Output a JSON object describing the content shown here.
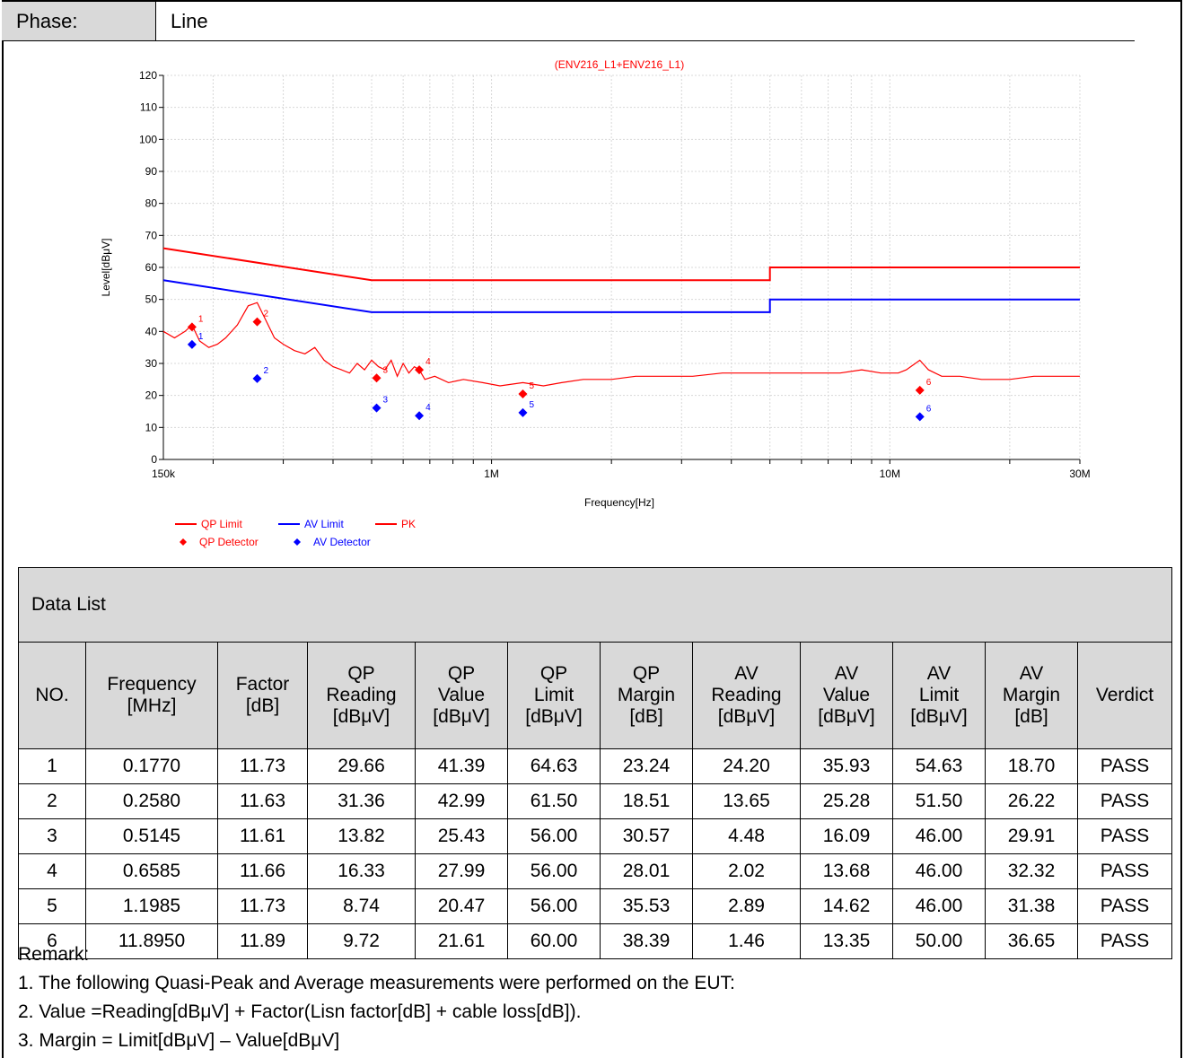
{
  "phase": {
    "label": "Phase:",
    "value": "Line"
  },
  "chart_data": {
    "type": "line",
    "title": "(ENV216_L1+ENV216_L1)",
    "xlabel": "Frequency[Hz]",
    "ylabel": "Level[dBμV]",
    "xscale": "log",
    "xlim": [
      150000,
      30000000
    ],
    "ylim": [
      0,
      120
    ],
    "yticks": [
      0,
      10,
      20,
      30,
      40,
      50,
      60,
      70,
      80,
      90,
      100,
      110,
      120
    ],
    "xtick_labels": [
      {
        "value": 150000,
        "label": "150k"
      },
      {
        "value": 1000000,
        "label": "1M"
      },
      {
        "value": 10000000,
        "label": "10M"
      },
      {
        "value": 30000000,
        "label": "30M"
      }
    ],
    "grid": true,
    "legend_position": "bottom-left",
    "colors": {
      "red": "#ff0000",
      "blue": "#0000ff"
    },
    "series": [
      {
        "name": "QP Limit",
        "kind": "line",
        "color": "#ff0000",
        "x": [
          150000,
          500000,
          500000,
          5000000,
          5000000,
          30000000
        ],
        "y": [
          66,
          56,
          56,
          56,
          60,
          60
        ]
      },
      {
        "name": "AV Limit",
        "kind": "line",
        "color": "#0000ff",
        "x": [
          150000,
          500000,
          500000,
          5000000,
          5000000,
          30000000
        ],
        "y": [
          56,
          46,
          46,
          46,
          50,
          50
        ]
      },
      {
        "name": "PK",
        "kind": "line",
        "color": "#ff0000",
        "x": [
          150000,
          160000,
          170000,
          177000,
          185000,
          195000,
          205000,
          215000,
          230000,
          245000,
          258000,
          270000,
          285000,
          300000,
          320000,
          340000,
          360000,
          380000,
          400000,
          420000,
          440000,
          460000,
          480000,
          500000,
          520000,
          540000,
          560000,
          580000,
          600000,
          620000,
          640000,
          658500,
          680000,
          720000,
          780000,
          850000,
          950000,
          1050000,
          1198500,
          1350000,
          1500000,
          1700000,
          2000000,
          2300000,
          2700000,
          3200000,
          3800000,
          4500000,
          5500000,
          6500000,
          7500000,
          8500000,
          9500000,
          10500000,
          11000000,
          11895000,
          12500000,
          13500000,
          15000000,
          17000000,
          20000000,
          23000000,
          26000000,
          30000000
        ],
        "y": [
          40,
          38,
          40,
          42,
          37,
          35,
          36,
          38,
          42,
          48,
          49,
          44,
          38,
          36,
          34,
          33,
          35,
          31,
          29,
          28,
          27,
          30,
          28,
          31,
          29,
          28,
          31,
          26,
          30,
          27,
          29,
          28,
          25,
          26,
          24,
          25,
          24,
          23,
          24,
          23,
          24,
          25,
          25,
          26,
          26,
          26,
          27,
          27,
          27,
          27,
          27,
          28,
          27,
          27,
          28,
          31,
          28,
          26,
          26,
          25,
          25,
          26,
          26,
          26
        ]
      },
      {
        "name": "QP Detector",
        "kind": "marker",
        "color": "#ff0000",
        "x": [
          177000,
          258000,
          514500,
          658500,
          1198500,
          11895000
        ],
        "y": [
          41.39,
          42.99,
          25.43,
          27.99,
          20.47,
          21.61
        ],
        "labels": [
          "1",
          "2",
          "3",
          "4",
          "5",
          "6"
        ]
      },
      {
        "name": "AV Detector",
        "kind": "marker",
        "color": "#0000ff",
        "x": [
          177000,
          258000,
          514500,
          658500,
          1198500,
          11895000
        ],
        "y": [
          35.93,
          25.28,
          16.09,
          13.68,
          14.62,
          13.35
        ],
        "labels": [
          "1",
          "2",
          "3",
          "4",
          "5",
          "6"
        ]
      }
    ]
  },
  "table": {
    "title": "Data List",
    "headers": [
      [
        "NO."
      ],
      [
        "Frequency",
        "[MHz]"
      ],
      [
        "Factor",
        "[dB]"
      ],
      [
        "QP",
        "Reading",
        "[dBμV]"
      ],
      [
        "QP",
        "Value",
        "[dBμV]"
      ],
      [
        "QP",
        "Limit",
        "[dBμV]"
      ],
      [
        "QP",
        "Margin",
        "[dB]"
      ],
      [
        "AV",
        "Reading",
        "[dBμV]"
      ],
      [
        "AV",
        "Value",
        "[dBμV]"
      ],
      [
        "AV",
        "Limit",
        "[dBμV]"
      ],
      [
        "AV",
        "Margin",
        "[dB]"
      ],
      [
        "Verdict"
      ]
    ],
    "rows": [
      [
        "1",
        "0.1770",
        "11.73",
        "29.66",
        "41.39",
        "64.63",
        "23.24",
        "24.20",
        "35.93",
        "54.63",
        "18.70",
        "PASS"
      ],
      [
        "2",
        "0.2580",
        "11.63",
        "31.36",
        "42.99",
        "61.50",
        "18.51",
        "13.65",
        "25.28",
        "51.50",
        "26.22",
        "PASS"
      ],
      [
        "3",
        "0.5145",
        "11.61",
        "13.82",
        "25.43",
        "56.00",
        "30.57",
        "4.48",
        "16.09",
        "46.00",
        "29.91",
        "PASS"
      ],
      [
        "4",
        "0.6585",
        "11.66",
        "16.33",
        "27.99",
        "56.00",
        "28.01",
        "2.02",
        "13.68",
        "46.00",
        "32.32",
        "PASS"
      ],
      [
        "5",
        "1.1985",
        "11.73",
        "8.74",
        "20.47",
        "56.00",
        "35.53",
        "2.89",
        "14.62",
        "46.00",
        "31.38",
        "PASS"
      ],
      [
        "6",
        "11.8950",
        "11.89",
        "9.72",
        "21.61",
        "60.00",
        "38.39",
        "1.46",
        "13.35",
        "50.00",
        "36.65",
        "PASS"
      ]
    ]
  },
  "remarks": {
    "title": "Remark:",
    "lines": [
      "1. The following Quasi-Peak and Average measurements were performed on the EUT:",
      "2. Value =Reading[dBμV] + Factor(Lisn factor[dB] + cable loss[dB]).",
      "3. Margin = Limit[dBμV] – Value[dBμV]"
    ]
  }
}
